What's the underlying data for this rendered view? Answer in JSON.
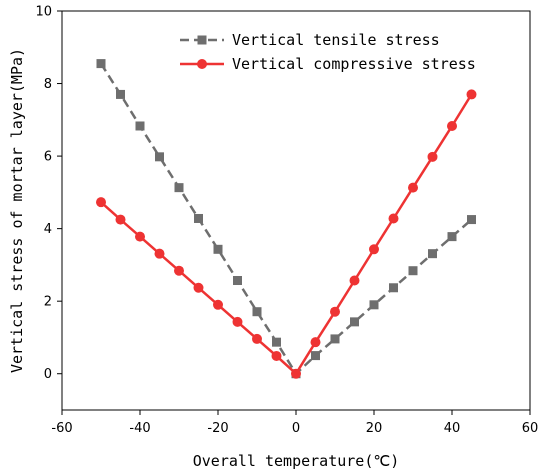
{
  "chart_data": {
    "type": "line",
    "xlabel": "Overall temperature(℃)",
    "ylabel": "Vertical stress of mortar layer(MPa)",
    "xlim": [
      -60,
      60
    ],
    "ylim": [
      -1,
      10
    ],
    "xticks": [
      -60,
      -40,
      -20,
      0,
      20,
      40,
      60
    ],
    "yticks": [
      0,
      2,
      4,
      6,
      8,
      10
    ],
    "grid": false,
    "legend_position": "top-center",
    "series": [
      {
        "name": "Vertical tensile stress",
        "color": "#6e6e6e",
        "marker": "square",
        "line_style": "dashed",
        "x": [
          -50,
          -45,
          -40,
          -35,
          -30,
          -25,
          -20,
          -15,
          -10,
          -5,
          0,
          5,
          10,
          15,
          20,
          25,
          30,
          35,
          40,
          45
        ],
        "y": [
          8.55,
          7.7,
          6.83,
          5.98,
          5.13,
          4.28,
          3.43,
          2.57,
          1.71,
          0.87,
          0.0,
          0.5,
          0.96,
          1.43,
          1.9,
          2.37,
          2.84,
          3.31,
          3.78,
          4.25
        ]
      },
      {
        "name": "Vertical compressive stress",
        "color": "#ee3333",
        "marker": "circle",
        "line_style": "solid",
        "x": [
          -50,
          -45,
          -40,
          -35,
          -30,
          -25,
          -20,
          -15,
          -10,
          -5,
          0,
          5,
          10,
          15,
          20,
          25,
          30,
          35,
          40,
          45
        ],
        "y": [
          4.73,
          4.25,
          3.78,
          3.31,
          2.84,
          2.37,
          1.9,
          1.43,
          0.96,
          0.49,
          0.0,
          0.87,
          1.71,
          2.57,
          3.43,
          4.28,
          5.13,
          5.98,
          6.83,
          7.7
        ]
      }
    ]
  }
}
